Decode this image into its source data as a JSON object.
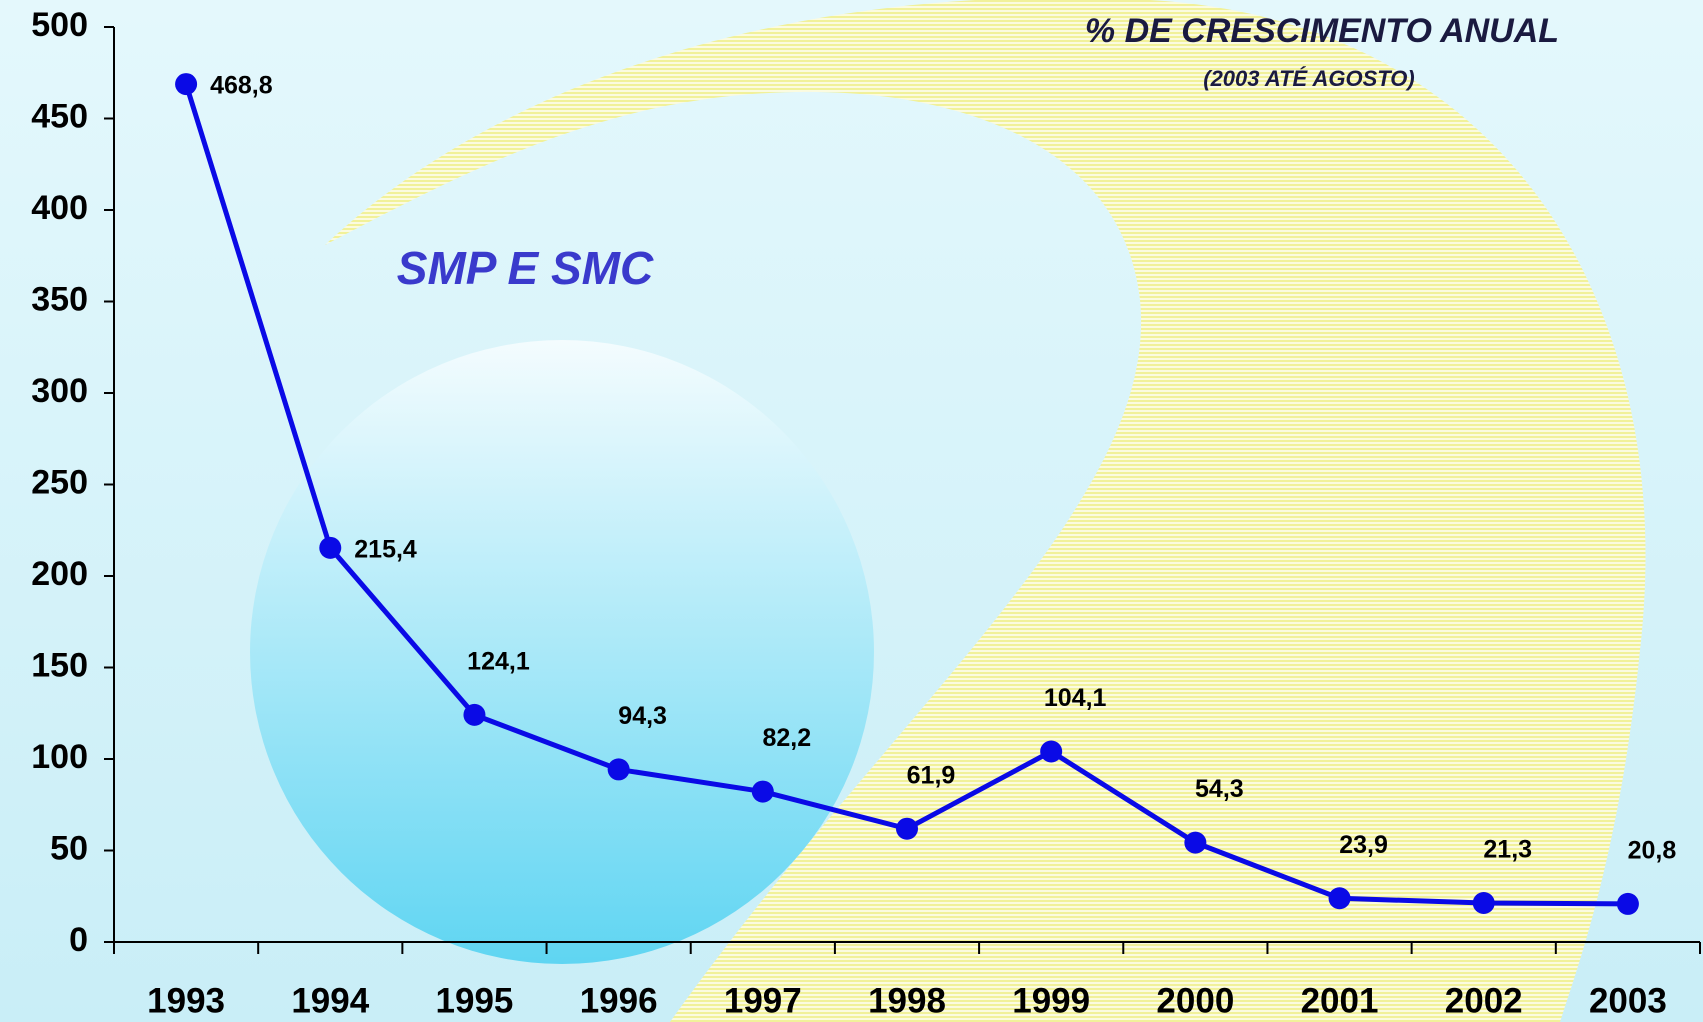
{
  "chart_data": {
    "type": "line",
    "title": "% DE CRESCIMENTO ANUAL",
    "subtitle": "(2003 ATÉ AGOSTO)",
    "annotation": "SMP E SMC",
    "categories": [
      "1993",
      "1994",
      "1995",
      "1996",
      "1997",
      "1998",
      "1999",
      "2000",
      "2001",
      "2002",
      "2003"
    ],
    "values": [
      468.8,
      215.4,
      124.1,
      94.3,
      82.2,
      61.9,
      104.1,
      54.3,
      23.9,
      21.3,
      20.8
    ],
    "value_labels": [
      "468,8",
      "215,4",
      "124,1",
      "94,3",
      "82,2",
      "61,9",
      "104,1",
      "54,3",
      "23,9",
      "21,3",
      "20,8"
    ],
    "color": "#0a0ae6",
    "ylim": [
      0,
      500
    ],
    "yticks": [
      0,
      50,
      100,
      150,
      200,
      250,
      300,
      350,
      400,
      450,
      500
    ]
  }
}
